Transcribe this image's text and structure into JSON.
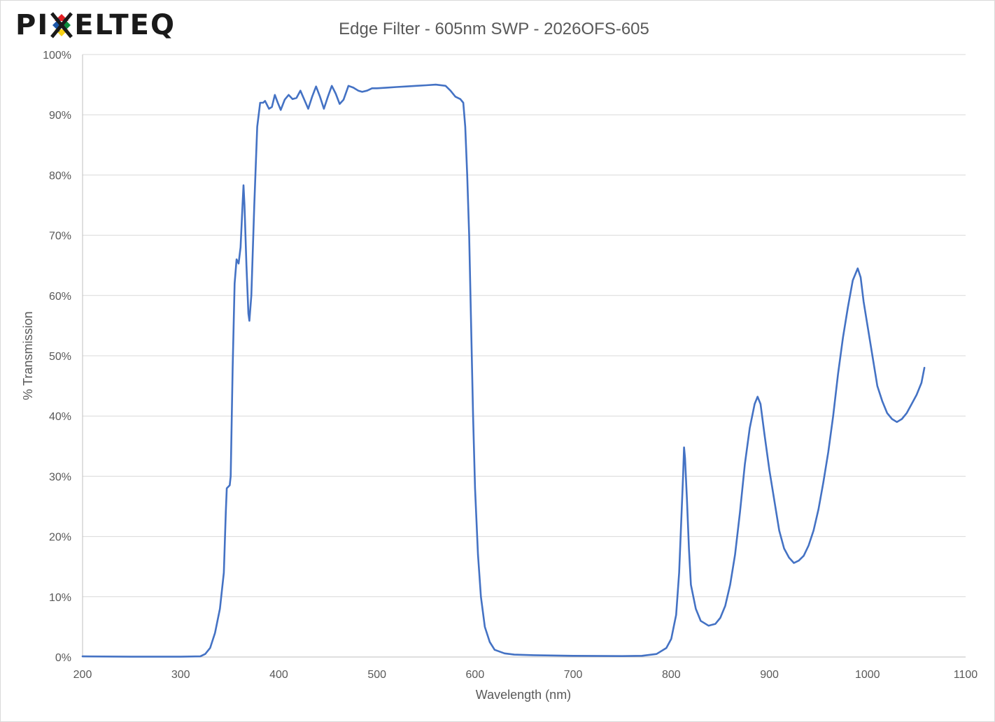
{
  "logo": {
    "text_left": "PI",
    "text_right": "ELTEQ",
    "x_colors": [
      "#e31e24",
      "#0b8c3c",
      "#f7d117",
      "#1d57a7"
    ]
  },
  "chart_data": {
    "type": "line",
    "title": "Edge Filter - 605nm SWP - 2026OFS-605",
    "xlabel": "Wavelength (nm)",
    "ylabel": "% Transmission",
    "xlim": [
      200,
      1100
    ],
    "ylim": [
      0,
      100
    ],
    "x_ticks": [
      200,
      300,
      400,
      500,
      600,
      700,
      800,
      900,
      1000,
      1100
    ],
    "x_tick_labels": [
      "200",
      "300",
      "400",
      "500",
      "600",
      "700",
      "800",
      "900",
      "1000",
      "1100"
    ],
    "y_ticks": [
      0,
      10,
      20,
      30,
      40,
      50,
      60,
      70,
      80,
      90,
      100
    ],
    "y_tick_labels": [
      "0%",
      "10%",
      "20%",
      "30%",
      "40%",
      "50%",
      "60%",
      "70%",
      "80%",
      "90%",
      "100%"
    ],
    "grid": "horizontal",
    "legend": "none",
    "series": [
      {
        "color": "#4472c4",
        "points": [
          [
            200,
            0.1
          ],
          [
            250,
            0.05
          ],
          [
            300,
            0.05
          ],
          [
            320,
            0.1
          ],
          [
            325,
            0.5
          ],
          [
            330,
            1.5
          ],
          [
            335,
            4
          ],
          [
            340,
            8
          ],
          [
            344,
            14
          ],
          [
            346,
            24
          ],
          [
            347,
            28
          ],
          [
            350,
            28.5
          ],
          [
            351,
            30
          ],
          [
            353,
            48
          ],
          [
            355,
            62
          ],
          [
            357,
            66
          ],
          [
            359,
            65.3
          ],
          [
            361,
            68
          ],
          [
            363,
            75
          ],
          [
            364,
            78.3
          ],
          [
            365,
            75
          ],
          [
            367,
            65
          ],
          [
            369,
            57
          ],
          [
            370,
            55.8
          ],
          [
            372,
            60
          ],
          [
            375,
            75
          ],
          [
            378,
            88
          ],
          [
            381,
            92
          ],
          [
            384,
            92
          ],
          [
            386,
            92.3
          ],
          [
            390,
            91
          ],
          [
            393,
            91.3
          ],
          [
            396,
            93.3
          ],
          [
            399,
            92
          ],
          [
            402,
            90.8
          ],
          [
            406,
            92.5
          ],
          [
            410,
            93.3
          ],
          [
            414,
            92.6
          ],
          [
            418,
            92.8
          ],
          [
            422,
            94
          ],
          [
            426,
            92.5
          ],
          [
            430,
            91
          ],
          [
            434,
            93
          ],
          [
            438,
            94.7
          ],
          [
            442,
            93
          ],
          [
            446,
            91
          ],
          [
            450,
            93
          ],
          [
            454,
            94.8
          ],
          [
            458,
            93.5
          ],
          [
            462,
            91.8
          ],
          [
            466,
            92.5
          ],
          [
            471,
            94.8
          ],
          [
            476,
            94.5
          ],
          [
            481,
            94
          ],
          [
            485,
            93.8
          ],
          [
            490,
            94
          ],
          [
            495,
            94.4
          ],
          [
            500,
            94.4
          ],
          [
            510,
            94.5
          ],
          [
            520,
            94.6
          ],
          [
            530,
            94.7
          ],
          [
            540,
            94.8
          ],
          [
            550,
            94.9
          ],
          [
            560,
            95
          ],
          [
            570,
            94.8
          ],
          [
            575,
            94
          ],
          [
            580,
            93
          ],
          [
            585,
            92.6
          ],
          [
            588,
            92
          ],
          [
            590,
            88
          ],
          [
            592,
            80
          ],
          [
            594,
            70
          ],
          [
            596,
            55
          ],
          [
            598,
            40
          ],
          [
            600,
            28
          ],
          [
            603,
            17
          ],
          [
            606,
            10
          ],
          [
            610,
            5
          ],
          [
            615,
            2.5
          ],
          [
            620,
            1.2
          ],
          [
            630,
            0.6
          ],
          [
            640,
            0.4
          ],
          [
            660,
            0.3
          ],
          [
            700,
            0.2
          ],
          [
            750,
            0.15
          ],
          [
            770,
            0.2
          ],
          [
            785,
            0.5
          ],
          [
            795,
            1.5
          ],
          [
            800,
            3
          ],
          [
            805,
            7
          ],
          [
            808,
            14
          ],
          [
            810,
            22
          ],
          [
            812,
            30
          ],
          [
            813,
            34.8
          ],
          [
            814,
            33
          ],
          [
            816,
            26
          ],
          [
            818,
            18
          ],
          [
            820,
            12
          ],
          [
            825,
            8
          ],
          [
            830,
            6
          ],
          [
            838,
            5.2
          ],
          [
            845,
            5.5
          ],
          [
            850,
            6.5
          ],
          [
            855,
            8.5
          ],
          [
            860,
            12
          ],
          [
            865,
            17
          ],
          [
            870,
            24
          ],
          [
            875,
            32
          ],
          [
            880,
            38
          ],
          [
            885,
            42
          ],
          [
            888,
            43.2
          ],
          [
            891,
            42
          ],
          [
            895,
            37
          ],
          [
            900,
            31
          ],
          [
            905,
            26
          ],
          [
            910,
            21
          ],
          [
            915,
            18
          ],
          [
            920,
            16.5
          ],
          [
            925,
            15.6
          ],
          [
            930,
            16
          ],
          [
            935,
            16.8
          ],
          [
            940,
            18.5
          ],
          [
            945,
            21
          ],
          [
            950,
            24.5
          ],
          [
            955,
            29
          ],
          [
            960,
            34
          ],
          [
            965,
            40
          ],
          [
            970,
            47
          ],
          [
            975,
            53
          ],
          [
            980,
            58
          ],
          [
            985,
            62.5
          ],
          [
            990,
            64.5
          ],
          [
            993,
            63
          ],
          [
            996,
            59
          ],
          [
            1000,
            55
          ],
          [
            1005,
            50
          ],
          [
            1010,
            45
          ],
          [
            1015,
            42.5
          ],
          [
            1020,
            40.5
          ],
          [
            1025,
            39.5
          ],
          [
            1030,
            39
          ],
          [
            1035,
            39.5
          ],
          [
            1040,
            40.5
          ],
          [
            1045,
            42
          ],
          [
            1050,
            43.5
          ],
          [
            1055,
            45.5
          ],
          [
            1058,
            48
          ]
        ]
      }
    ]
  }
}
